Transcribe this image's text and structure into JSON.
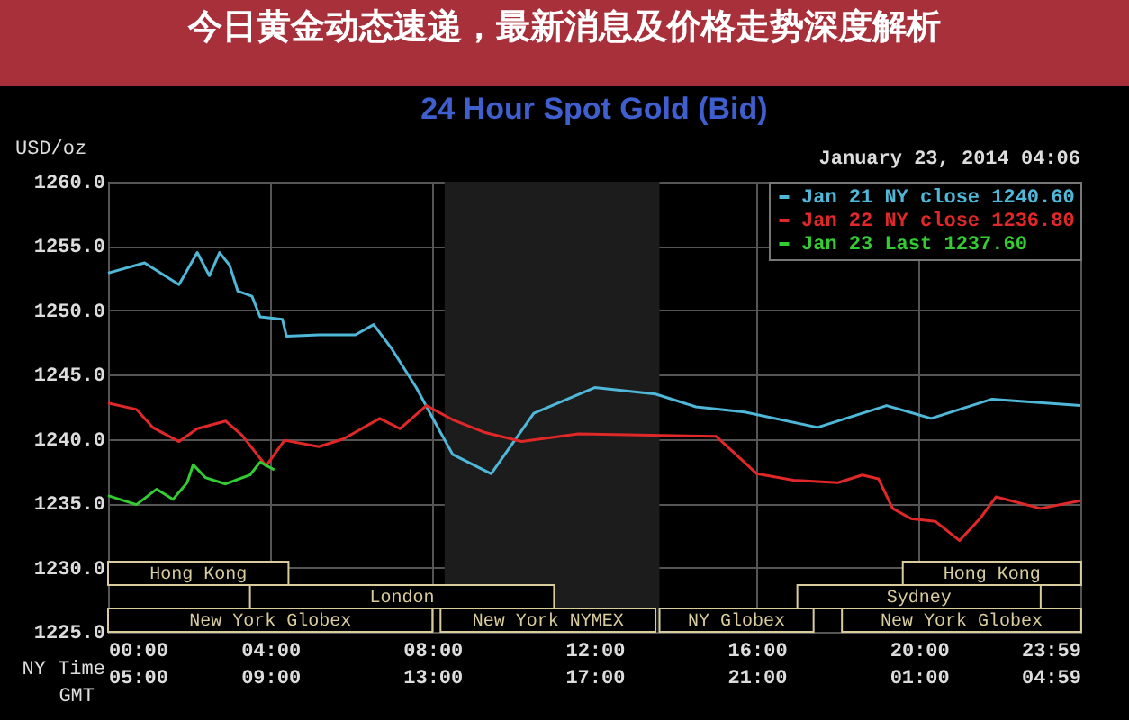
{
  "chart_data": {
    "type": "line",
    "title": "今日黄金动态速递，最新消息及价格走势深度解析",
    "subtitle": "24 Hour Spot Gold (Bid)",
    "ylabel": "USD/oz",
    "xlabel": "NY Time",
    "x2label": "GMT",
    "annotations": [
      "January 23, 2014 04:06"
    ],
    "xlim": [
      0,
      23.98
    ],
    "xticks": [
      {
        "value": 0,
        "label": "00:00"
      },
      {
        "value": 4,
        "label": "04:00"
      },
      {
        "value": 8,
        "label": "08:00"
      },
      {
        "value": 12,
        "label": "12:00"
      },
      {
        "value": 16,
        "label": "16:00"
      },
      {
        "value": 20,
        "label": "20:00"
      },
      {
        "value": 23.98,
        "label": "23:59"
      }
    ],
    "x2lim": [
      "2014-01-23T05:00",
      "2014-01-24T04:59"
    ],
    "x2ticks": [
      {
        "value": "2014-01-23T05:00",
        "label": "05:00"
      },
      {
        "value": "2014-01-23T09:00",
        "label": "09:00"
      },
      {
        "value": "2014-01-23T13:00",
        "label": "13:00"
      },
      {
        "value": "2014-01-23T17:00",
        "label": "17:00"
      },
      {
        "value": "2014-01-23T21:00",
        "label": "21:00"
      },
      {
        "value": "2014-01-24T01:00",
        "label": "01:00"
      },
      {
        "value": "2014-01-24T04:59",
        "label": "04:59"
      }
    ],
    "ylim": [
      1225,
      1260
    ],
    "yticks": [
      {
        "value": 1225,
        "label": "1225.0"
      },
      {
        "value": 1230,
        "label": "1230.0"
      },
      {
        "value": 1235,
        "label": "1235.0"
      },
      {
        "value": 1240,
        "label": "1240.0"
      },
      {
        "value": 1245,
        "label": "1245.0"
      },
      {
        "value": 1250,
        "label": "1250.0"
      },
      {
        "value": 1255,
        "label": "1255.0"
      },
      {
        "value": 1260,
        "label": "1260.0"
      }
    ],
    "grid": true,
    "legend": "top right",
    "bands": [
      {
        "axis": "x",
        "from": 8.3,
        "to": 13.6,
        "color": "#1c1c1c"
      },
      {
        "axis": "x",
        "from": 0,
        "to": 8.0,
        "label": "New York Globex",
        "color": "#d8cc9c"
      },
      {
        "axis": "x",
        "from": 8.2,
        "to": 13.5,
        "label": "New York NYMEX",
        "color": "#d8cc9c"
      },
      {
        "axis": "x",
        "from": 13.6,
        "to": 17.4,
        "label": "NY Globex",
        "color": "#d8cc9c"
      },
      {
        "axis": "x",
        "from": 18.1,
        "to": 24,
        "label": "New York Globex",
        "color": "#d8cc9c"
      },
      {
        "axis": "x",
        "from": 3.5,
        "to": 11,
        "label": "London",
        "color": "#d8cc9c"
      },
      {
        "axis": "x",
        "from": 17,
        "to": 23,
        "label": "Sydney",
        "color": "#d8cc9c"
      },
      {
        "axis": "x",
        "from": 0,
        "to": 4.45,
        "label": "Hong Kong",
        "color": "#d8cc9c"
      },
      {
        "axis": "x",
        "from": 19.6,
        "to": 24,
        "label": "Hong Kong",
        "color": "#d8cc9c"
      }
    ],
    "series": [
      {
        "name": "Jan 21 NY close 1240.60",
        "color": "#4fb8d8",
        "x": [
          0,
          0.9,
          1.75,
          2.2,
          2.5,
          2.75,
          3.0,
          3.2,
          3.55,
          3.75,
          4.3,
          4.4,
          5.2,
          6.1,
          6.55,
          7.0,
          7.6,
          8.2,
          8.5,
          9.45,
          10.5,
          12,
          13.5,
          14.5,
          15.7,
          17.5,
          18.3,
          19.2,
          20.3,
          21.8,
          23.98
        ],
        "values": [
          1252.9,
          1253.7,
          1252.0,
          1254.5,
          1252.7,
          1254.5,
          1253.5,
          1251.5,
          1251.1,
          1249.5,
          1249.3,
          1248.0,
          1248.1,
          1248.1,
          1248.9,
          1247.0,
          1244.0,
          1240.5,
          1238.8,
          1237.3,
          1242.0,
          1244.0,
          1243.5,
          1242.5,
          1242.1,
          1240.9,
          1241.7,
          1242.6,
          1241.6,
          1243.1,
          1242.6
        ]
      },
      {
        "name": "Jan 22 NY close 1236.80",
        "color": "#e02828",
        "x": [
          0,
          0.7,
          1.1,
          1.75,
          2.2,
          2.9,
          3.3,
          3.9,
          4.35,
          5.2,
          5.8,
          6.7,
          7.2,
          7.85,
          8.5,
          9.3,
          10.2,
          11.6,
          15.0,
          16.0,
          16.9,
          18.0,
          18.6,
          19.0,
          19.35,
          19.8,
          20.4,
          21.0,
          21.5,
          21.9,
          23.0,
          23.98
        ],
        "values": [
          1242.8,
          1242.3,
          1240.9,
          1239.8,
          1240.8,
          1241.4,
          1240.3,
          1237.9,
          1239.9,
          1239.4,
          1240.0,
          1241.6,
          1240.8,
          1242.6,
          1241.5,
          1240.5,
          1239.8,
          1240.4,
          1240.2,
          1237.3,
          1236.8,
          1236.6,
          1237.2,
          1236.9,
          1234.6,
          1233.8,
          1233.6,
          1232.1,
          1233.8,
          1235.5,
          1234.6,
          1235.2
        ]
      },
      {
        "name": "Jan 23 Last 1237.60",
        "color": "#33cc33",
        "x": [
          0,
          0.7,
          1.2,
          1.6,
          1.95,
          2.1,
          2.4,
          2.9,
          3.5,
          3.75,
          4.1
        ],
        "values": [
          1235.6,
          1234.9,
          1236.1,
          1235.3,
          1236.6,
          1238.0,
          1237.0,
          1236.5,
          1237.2,
          1238.2,
          1237.6
        ]
      }
    ]
  }
}
